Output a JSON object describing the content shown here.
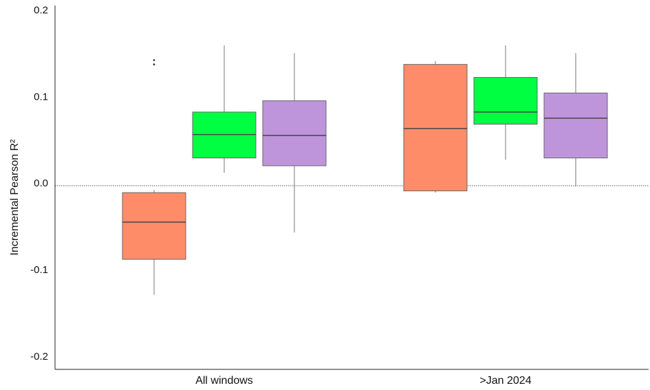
{
  "chart_data": {
    "type": "box",
    "ylabel": "Incremental Pearson R²",
    "xlabel": "",
    "ylim": [
      -0.215,
      0.205
    ],
    "yticks": [
      {
        "value": 0.2,
        "label": "0.2"
      },
      {
        "value": 0.1,
        "label": "0.1"
      },
      {
        "value": 0.0,
        "label": "0.0"
      },
      {
        "value": -0.1,
        "label": "-0.1"
      },
      {
        "value": -0.2,
        "label": "-0.2"
      }
    ],
    "reference_line": {
      "value": -0.003,
      "style": "dotted"
    },
    "categories": [
      "All windows",
      ">Jan 2024"
    ],
    "series": [
      {
        "color": "#ff8c69",
        "boxes": [
          {
            "whisker_low": -0.129,
            "q1": -0.088,
            "median": -0.045,
            "q3": -0.011,
            "whisker_high": -0.008,
            "outliers": [
              0.137,
              0.142
            ]
          },
          {
            "whisker_low": -0.011,
            "q1": -0.009,
            "median": 0.063,
            "q3": 0.137,
            "whisker_high": 0.141,
            "outliers": []
          }
        ]
      },
      {
        "color": "#00ff41",
        "boxes": [
          {
            "whisker_low": 0.012,
            "q1": 0.029,
            "median": 0.056,
            "q3": 0.082,
            "whisker_high": 0.159,
            "outliers": []
          },
          {
            "whisker_low": 0.027,
            "q1": 0.068,
            "median": 0.082,
            "q3": 0.122,
            "whisker_high": 0.159,
            "outliers": []
          }
        ]
      },
      {
        "color": "#be95db",
        "boxes": [
          {
            "whisker_low": -0.057,
            "q1": 0.02,
            "median": 0.055,
            "q3": 0.095,
            "whisker_high": 0.15,
            "outliers": []
          },
          {
            "whisker_low": -0.004,
            "q1": 0.029,
            "median": 0.075,
            "q3": 0.104,
            "whisker_high": 0.15,
            "outliers": []
          }
        ]
      }
    ],
    "grid": false,
    "legend": "none"
  }
}
